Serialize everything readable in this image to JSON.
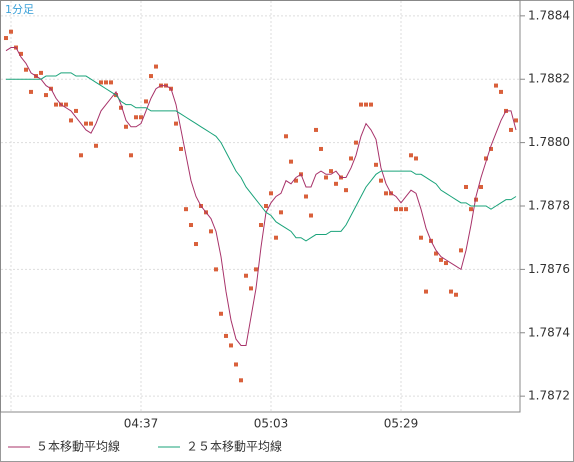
{
  "chart_data": {
    "type": "line",
    "title": "1分足",
    "categories": [
      null,
      null,
      null,
      null,
      null,
      null,
      null,
      null,
      null,
      null,
      null,
      null,
      null,
      null,
      null,
      null,
      null,
      null,
      null,
      null,
      null,
      null,
      null,
      null,
      null,
      null,
      null,
      "04:37",
      null,
      null,
      null,
      null,
      null,
      null,
      null,
      null,
      null,
      null,
      null,
      null,
      null,
      null,
      null,
      null,
      null,
      null,
      null,
      null,
      null,
      null,
      null,
      null,
      null,
      "05:03",
      null,
      null,
      null,
      null,
      null,
      null,
      null,
      null,
      null,
      null,
      null,
      null,
      null,
      null,
      null,
      null,
      null,
      null,
      null,
      null,
      null,
      null,
      null,
      null,
      null,
      "05:29",
      null,
      null,
      null,
      null,
      null,
      null,
      null,
      null,
      null,
      null,
      null,
      null,
      null,
      null,
      null,
      null,
      null,
      null,
      null,
      null,
      null,
      null,
      null
    ],
    "series": [
      {
        "marker": "square",
        "color": "#d9603b",
        "values": [
          1.78833,
          1.78835,
          1.7883,
          1.78828,
          1.78823,
          1.78816,
          1.78821,
          1.78822,
          1.78815,
          1.78817,
          1.78812,
          1.78812,
          1.78812,
          1.78807,
          1.7881,
          1.78796,
          1.78806,
          1.78806,
          1.78799,
          1.78819,
          1.78819,
          1.78819,
          1.78815,
          1.78811,
          1.78805,
          1.78796,
          1.78808,
          1.78808,
          1.78813,
          1.78821,
          1.78824,
          1.78818,
          1.78818,
          1.78817,
          1.78806,
          1.78798,
          1.78779,
          1.78774,
          1.78768,
          1.7878,
          1.78778,
          1.78772,
          1.7876,
          1.78746,
          1.78739,
          1.78736,
          1.7873,
          1.78725,
          1.78758,
          1.78754,
          1.7876,
          1.78774,
          1.7878,
          1.78784,
          1.7877,
          1.78778,
          1.78802,
          1.78794,
          1.78788,
          1.7879,
          1.78783,
          1.78777,
          1.78804,
          1.78798,
          1.78789,
          1.78791,
          1.78787,
          1.78789,
          1.78785,
          1.78795,
          1.788,
          1.78812,
          1.78812,
          1.78812,
          1.78793,
          1.78788,
          1.78784,
          1.78784,
          1.78779,
          1.78779,
          1.78779,
          1.78796,
          1.78795,
          1.7877,
          1.78753,
          1.78769,
          1.78765,
          1.78763,
          1.78762,
          1.78753,
          1.78752,
          1.78766,
          1.78786,
          1.78779,
          1.78782,
          1.78786,
          1.78795,
          1.78798,
          1.78818,
          1.78816,
          1.7881,
          1.78804,
          1.78807
        ]
      },
      {
        "name": "５本移動平均線",
        "color": "#a8336a",
        "values": [
          1.78829,
          1.7883,
          1.7883,
          1.78827,
          1.78825,
          1.78822,
          1.78821,
          1.7882,
          1.78818,
          1.78817,
          1.78814,
          1.78812,
          1.78811,
          1.7881,
          1.78808,
          1.78806,
          1.78804,
          1.78803,
          1.78806,
          1.7881,
          1.78812,
          1.78814,
          1.78816,
          1.78812,
          1.78807,
          1.78805,
          1.78805,
          1.78806,
          1.7881,
          1.78814,
          1.78817,
          1.78818,
          1.78818,
          1.78817,
          1.78812,
          1.78804,
          1.78796,
          1.78788,
          1.78783,
          1.7878,
          1.78778,
          1.78776,
          1.78772,
          1.78764,
          1.78753,
          1.78744,
          1.78738,
          1.78736,
          1.78736,
          1.78745,
          1.78754,
          1.78767,
          1.78778,
          1.78781,
          1.78783,
          1.78784,
          1.78788,
          1.78787,
          1.78789,
          1.7879,
          1.78786,
          1.78786,
          1.7879,
          1.78791,
          1.7879,
          1.7879,
          1.78791,
          1.78789,
          1.78789,
          1.78792,
          1.78796,
          1.78802,
          1.78806,
          1.78804,
          1.78801,
          1.78792,
          1.78787,
          1.78784,
          1.78783,
          1.78781,
          1.78783,
          1.78785,
          1.78784,
          1.78779,
          1.78773,
          1.78769,
          1.78766,
          1.78764,
          1.78763,
          1.78762,
          1.78761,
          1.7876,
          1.78766,
          1.78774,
          1.78783,
          1.78789,
          1.78794,
          1.78799,
          1.78803,
          1.78807,
          1.7881,
          1.7881,
          1.78804
        ]
      },
      {
        "name": "２５本移動平均線",
        "color": "#1aa37a",
        "values": [
          1.7882,
          1.7882,
          1.7882,
          1.7882,
          1.7882,
          1.7882,
          1.7882,
          1.7882,
          1.78821,
          1.78821,
          1.78821,
          1.78822,
          1.78822,
          1.78822,
          1.78821,
          1.78821,
          1.78821,
          1.7882,
          1.78819,
          1.78818,
          1.78817,
          1.78816,
          1.78815,
          1.78813,
          1.78812,
          1.78812,
          1.78811,
          1.78811,
          1.78811,
          1.7881,
          1.7881,
          1.7881,
          1.7881,
          1.7881,
          1.7881,
          1.78809,
          1.78808,
          1.78807,
          1.78806,
          1.78805,
          1.78804,
          1.78803,
          1.78802,
          1.788,
          1.78797,
          1.78794,
          1.78791,
          1.78789,
          1.78786,
          1.78784,
          1.78782,
          1.7878,
          1.78778,
          1.78777,
          1.78775,
          1.78774,
          1.78773,
          1.78772,
          1.7877,
          1.7877,
          1.78769,
          1.7877,
          1.78771,
          1.78771,
          1.78771,
          1.78772,
          1.78772,
          1.78772,
          1.78774,
          1.78777,
          1.7878,
          1.78783,
          1.78786,
          1.78788,
          1.7879,
          1.78791,
          1.78791,
          1.78791,
          1.78791,
          1.78791,
          1.78791,
          1.78791,
          1.7879,
          1.7879,
          1.78789,
          1.78788,
          1.78787,
          1.78785,
          1.78784,
          1.78783,
          1.78782,
          1.78781,
          1.78781,
          1.7878,
          1.7878,
          1.7878,
          1.7878,
          1.78779,
          1.7878,
          1.78781,
          1.78782,
          1.78782,
          1.78783
        ]
      }
    ],
    "ylim": [
      1.78715,
      1.78845
    ],
    "yticks": [
      1.7872,
      1.7874,
      1.7876,
      1.7878,
      {
        "value": 1.788,
        "label": "1.7880"
      },
      1.7882,
      1.7884
    ],
    "grid": true
  }
}
